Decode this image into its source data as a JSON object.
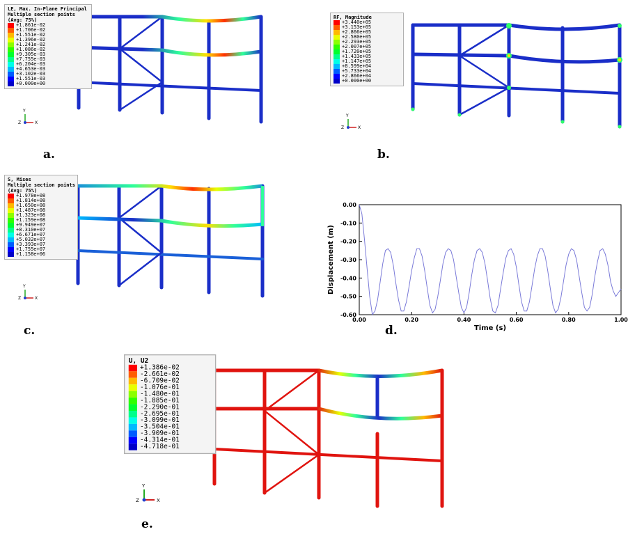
{
  "colors": {
    "frame_blue": "#1a2ec8",
    "frame_red": "#e0140f",
    "contour": [
      "#ff0000",
      "#ff5c00",
      "#ffb900",
      "#e8ff00",
      "#8bff00",
      "#2eff00",
      "#00ff2e",
      "#00ff8b",
      "#00ffe8",
      "#00b9ff",
      "#005cff",
      "#0000ff",
      "#0000c8"
    ]
  },
  "panels": [
    {
      "id": "a",
      "caption": "a.",
      "legend_lines": [
        "LE, Max. In-Plane Principal",
        "Multiple section points",
        "(Avg: 75%)"
      ],
      "levels": [
        "+1.861e-02",
        "+1.706e-02",
        "+1.551e-02",
        "+1.396e-02",
        "+1.241e-02",
        "+1.086e-02",
        "+9.305e-03",
        "+7.755e-03",
        "+6.204e-03",
        "+4.653e-03",
        "+3.102e-03",
        "+1.551e-03",
        "+0.000e+00"
      ]
    },
    {
      "id": "b",
      "caption": "b.",
      "legend_lines": [
        "RF, Magnitude"
      ],
      "levels": [
        "+3.440e+05",
        "+3.153e+05",
        "+2.866e+05",
        "+2.580e+05",
        "+2.293e+05",
        "+2.007e+05",
        "+1.720e+05",
        "+1.433e+05",
        "+1.147e+05",
        "+8.599e+04",
        "+5.733e+04",
        "+2.866e+04",
        "+0.000e+00"
      ]
    },
    {
      "id": "c",
      "caption": "c.",
      "legend_lines": [
        "S, Mises",
        "Multiple section points",
        "(Avg: 75%)"
      ],
      "levels": [
        "+1.978e+08",
        "+1.814e+08",
        "+1.650e+08",
        "+1.487e+08",
        "+1.323e+08",
        "+1.159e+08",
        "+9.949e+07",
        "+8.310e+07",
        "+6.671e+07",
        "+5.032e+07",
        "+3.393e+07",
        "+1.755e+07",
        "+1.158e+06"
      ]
    },
    {
      "id": "e",
      "caption": "e.",
      "legend_lines": [
        "U, U2"
      ],
      "levels": [
        "+1.386e-02",
        "-2.661e-02",
        "-6.709e-02",
        "-1.076e-01",
        "-1.480e-01",
        "-1.885e-01",
        "-2.290e-01",
        "-2.695e-01",
        "-3.099e-01",
        "-3.504e-01",
        "-3.909e-01",
        "-4.314e-01",
        "-4.718e-01"
      ]
    }
  ],
  "axis_triad": {
    "y": "Y",
    "z": "Z",
    "x": "X"
  },
  "plot": {
    "caption": "d.",
    "chart_data": {
      "type": "line",
      "xlabel": "Time (s)",
      "ylabel": "Displacement (m)",
      "xlim": [
        0,
        1.0
      ],
      "ylim": [
        -0.6,
        0.0
      ],
      "xticks": [
        "0.00",
        "0.20",
        "0.40",
        "0.60",
        "0.80",
        "1.00"
      ],
      "yticks": [
        "0.00",
        "-0.10",
        "-0.20",
        "-0.30",
        "-0.40",
        "-0.50",
        "-0.60"
      ],
      "series": [
        {
          "color": "#7a7ad8",
          "x": [
            0.0,
            0.01,
            0.02,
            0.03,
            0.04,
            0.05,
            0.06,
            0.07,
            0.08,
            0.09,
            0.1,
            0.11,
            0.12,
            0.13,
            0.14,
            0.15,
            0.16,
            0.17,
            0.18,
            0.19,
            0.2,
            0.21,
            0.22,
            0.23,
            0.24,
            0.25,
            0.26,
            0.27,
            0.28,
            0.29,
            0.3,
            0.31,
            0.32,
            0.33,
            0.34,
            0.35,
            0.36,
            0.37,
            0.38,
            0.39,
            0.4,
            0.41,
            0.42,
            0.43,
            0.44,
            0.45,
            0.46,
            0.47,
            0.48,
            0.49,
            0.5,
            0.51,
            0.52,
            0.53,
            0.54,
            0.55,
            0.56,
            0.57,
            0.58,
            0.59,
            0.6,
            0.61,
            0.62,
            0.63,
            0.64,
            0.65,
            0.66,
            0.67,
            0.68,
            0.69,
            0.7,
            0.71,
            0.72,
            0.73,
            0.74,
            0.75,
            0.76,
            0.77,
            0.78,
            0.79,
            0.8,
            0.81,
            0.82,
            0.83,
            0.84,
            0.85,
            0.86,
            0.87,
            0.88,
            0.89,
            0.9,
            0.91,
            0.92,
            0.93,
            0.94,
            0.95,
            0.96,
            0.97,
            0.98,
            0.99,
            1.0
          ],
          "y": [
            0.0,
            -0.05,
            -0.19,
            -0.35,
            -0.5,
            -0.6,
            -0.58,
            -0.52,
            -0.42,
            -0.32,
            -0.25,
            -0.24,
            -0.26,
            -0.33,
            -0.43,
            -0.52,
            -0.58,
            -0.58,
            -0.53,
            -0.45,
            -0.36,
            -0.29,
            -0.24,
            -0.24,
            -0.28,
            -0.36,
            -0.46,
            -0.55,
            -0.59,
            -0.57,
            -0.5,
            -0.41,
            -0.32,
            -0.26,
            -0.24,
            -0.25,
            -0.3,
            -0.39,
            -0.48,
            -0.56,
            -0.59,
            -0.56,
            -0.48,
            -0.38,
            -0.3,
            -0.25,
            -0.24,
            -0.26,
            -0.32,
            -0.41,
            -0.51,
            -0.58,
            -0.59,
            -0.55,
            -0.46,
            -0.37,
            -0.29,
            -0.25,
            -0.24,
            -0.27,
            -0.34,
            -0.44,
            -0.53,
            -0.58,
            -0.58,
            -0.53,
            -0.44,
            -0.35,
            -0.28,
            -0.24,
            -0.24,
            -0.28,
            -0.36,
            -0.46,
            -0.55,
            -0.59,
            -0.57,
            -0.51,
            -0.42,
            -0.33,
            -0.27,
            -0.24,
            -0.25,
            -0.3,
            -0.39,
            -0.48,
            -0.56,
            -0.58,
            -0.56,
            -0.49,
            -0.39,
            -0.31,
            -0.25,
            -0.24,
            -0.27,
            -0.33,
            -0.42,
            -0.47,
            -0.5,
            -0.48,
            -0.46
          ]
        }
      ]
    }
  }
}
